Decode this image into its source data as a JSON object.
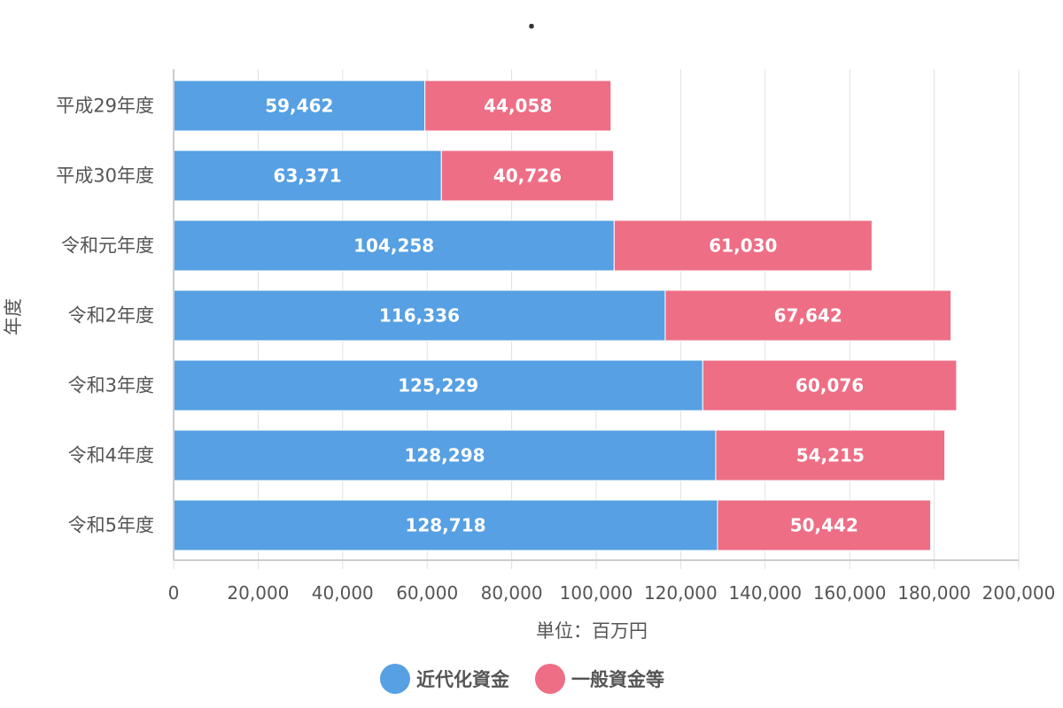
{
  "chart_data": {
    "type": "bar",
    "orientation": "horizontal",
    "stacked": true,
    "title": "・",
    "xlabel": "単位：百万円",
    "ylabel": "年度",
    "xlim": [
      0,
      200000
    ],
    "x_ticks": [
      "0",
      "20,000",
      "40,000",
      "60,000",
      "80,000",
      "100,000",
      "120,000",
      "140,000",
      "160,000",
      "180,000",
      "200,000"
    ],
    "x_tick_values": [
      0,
      20000,
      40000,
      60000,
      80000,
      100000,
      120000,
      140000,
      160000,
      180000,
      200000
    ],
    "grid": true,
    "legend_position": "bottom",
    "categories": [
      "平成29年度",
      "平成30年度",
      "令和元年度",
      "令和2年度",
      "令和3年度",
      "令和4年度",
      "令和5年度"
    ],
    "series": [
      {
        "name": "近代化資金",
        "color": "#56a0e3",
        "values": [
          59462,
          63371,
          104258,
          116336,
          125229,
          128298,
          128718
        ],
        "labels": [
          "59,462",
          "63,371",
          "104,258",
          "116,336",
          "125,229",
          "128,298",
          "128,718"
        ]
      },
      {
        "name": "一般資金等",
        "color": "#ee6e85",
        "values": [
          44058,
          40726,
          61030,
          67642,
          60076,
          54215,
          50442
        ],
        "labels": [
          "44,058",
          "40,726",
          "61,030",
          "67,642",
          "60,076",
          "54,215",
          "50,442"
        ]
      }
    ]
  }
}
